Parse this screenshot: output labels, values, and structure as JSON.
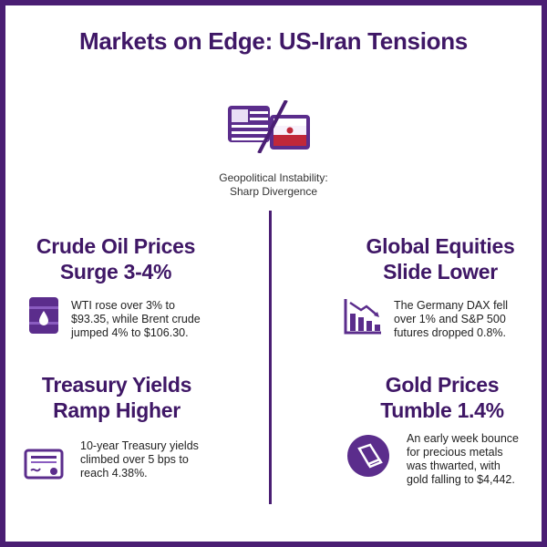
{
  "title": "Markets on Edge: US-Iran Tensions",
  "hero": {
    "caption_line1": "Geopolitical Instability:",
    "caption_line2": "Sharp Divergence"
  },
  "sections": {
    "oil": {
      "heading_line1": "Crude Oil Prices",
      "heading_line2": "Surge 3-4%",
      "body_line1": "WTI rose over 3% to",
      "body_line2": "$93.35, while Brent crude",
      "body_line3": "jumped 4% to $106.30.",
      "icon": "oil-barrel-icon"
    },
    "equities": {
      "heading_line1": "Global Equities",
      "heading_line2": "Slide Lower",
      "body_line1": "The Germany DAX fell",
      "body_line2": "over 1% and S&P 500",
      "body_line3": "futures dropped 0.8%.",
      "icon": "falling-bar-chart-icon"
    },
    "treasury": {
      "heading_line1": "Treasury Yields",
      "heading_line2": "Ramp Higher",
      "body_line1": "10-year Treasury yields",
      "body_line2": "climbed over 5 bps to",
      "body_line3": "reach 4.38%.",
      "icon": "certificate-icon"
    },
    "gold": {
      "heading_line1": "Gold Prices",
      "heading_line2": "Tumble 1.4%",
      "body_line1": "An early week bounce",
      "body_line2": "for precious metals",
      "body_line3": "was thwarted, with",
      "body_line4": "gold falling to $4,442.",
      "icon": "gold-bar-icon"
    }
  },
  "colors": {
    "primary": "#3f1766",
    "accent": "#6b3fa0",
    "frame": "#4a1e73",
    "flag_red": "#c0283a"
  }
}
